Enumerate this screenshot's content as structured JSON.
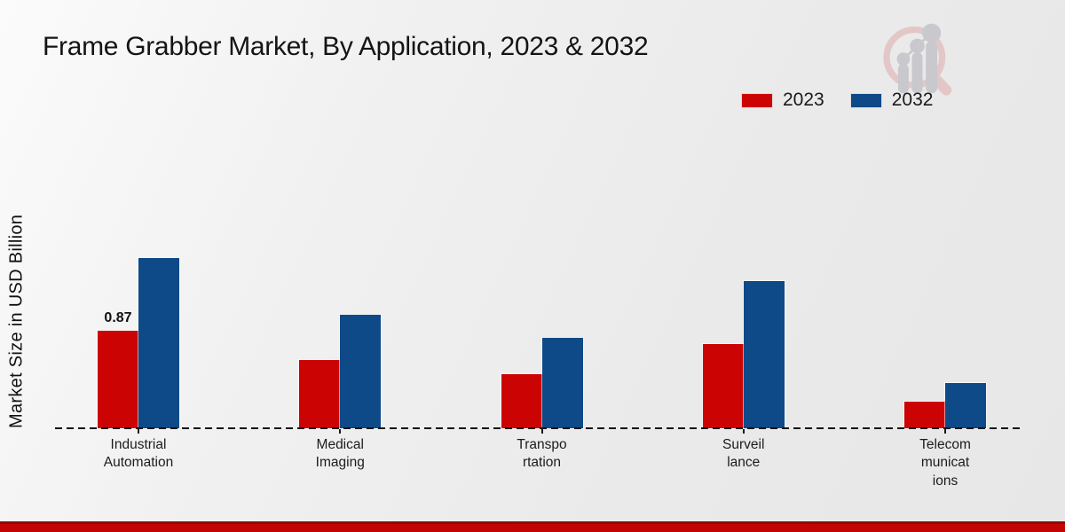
{
  "title": "Frame Grabber Market, By Application, 2023 & 2032",
  "legend": {
    "position": "top-right",
    "items": [
      {
        "label": "2023",
        "color": "#cc0303"
      },
      {
        "label": "2032",
        "color": "#0d4a87"
      }
    ]
  },
  "watermark_icon": "magnifier-bar-chart-logo",
  "colors": {
    "series_2023": "#cc0303",
    "series_2032": "#0d4a87",
    "footer_strip": "#c20504",
    "background": "#ededed",
    "axis": "#141414"
  },
  "chart_data": {
    "type": "bar",
    "title": "Frame Grabber Market, By Application, 2023 & 2032",
    "xlabel": "",
    "ylabel": "Market Size in USD Billion",
    "categories": [
      "Industrial Automation",
      "Medical Imaging",
      "Transportation",
      "Surveillance",
      "Telecommunications"
    ],
    "categories_wrapped": [
      [
        "Industrial",
        "Automation"
      ],
      [
        "Medical",
        "Imaging"
      ],
      [
        "Transpo",
        "rtation"
      ],
      [
        "Surveil",
        "lance"
      ],
      [
        "Telecom",
        "municat",
        "ions"
      ]
    ],
    "series": [
      {
        "name": "2023",
        "color": "#cc0303",
        "values": [
          0.87,
          0.61,
          0.48,
          0.75,
          0.24
        ]
      },
      {
        "name": "2032",
        "color": "#0d4a87",
        "values": [
          1.52,
          1.01,
          0.81,
          1.31,
          0.4
        ]
      }
    ],
    "data_labels": [
      {
        "series": "2023",
        "category_index": 0,
        "text": "0.87"
      }
    ],
    "ylim": [
      0,
      1.6
    ],
    "grid": false,
    "baseline_style": "dashed",
    "legend_position": "top-right"
  }
}
